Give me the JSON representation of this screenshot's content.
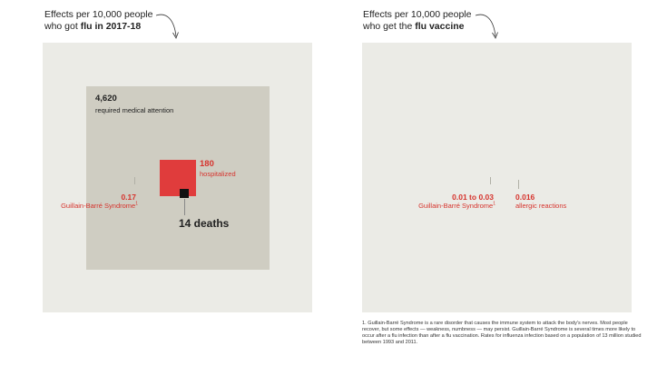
{
  "left_panel": {
    "heading_line1": "Effects per 10,000 people",
    "heading_line2_prefix": "who got ",
    "heading_line2_bold": "flu in 2017-18",
    "medical_value": "4,620",
    "medical_label": "required medical attention",
    "hospitalized_value": "180",
    "hospitalized_label": "hospitalized",
    "deaths_label": "14 deaths",
    "gbs_value": "0.17",
    "gbs_label": "Guillain-Barré Syndrome",
    "gbs_sup": "1"
  },
  "right_panel": {
    "heading_line1": "Effects per 10,000 people",
    "heading_line2_prefix": "who get the ",
    "heading_line2_bold": "flu vaccine",
    "gbs_value": "0.01 to 0.03",
    "gbs_label": "Guillain-Barré Syndrome",
    "gbs_sup": "1",
    "allergic_value": "0.016",
    "allergic_label": "allergic reactions"
  },
  "footnote": "1. Guillain-Barré Syndrome is a rare disorder that causes the immune system to attack the body's nerves. Most people recover, but some effects — weakness, numbness — may persist. Guillain-Barré Syndrome is several times more likely to occur after a flu infection than after a flu vaccination. Rates for influenza infection based on a population of 13 million studied between 1993 and 2011.",
  "colors": {
    "outer_square": "#ebebe6",
    "medical_square": "#cfcdc2",
    "hospitalized_red": "#e03c3c",
    "death_black": "#111111",
    "label_red": "#d6332d"
  }
}
